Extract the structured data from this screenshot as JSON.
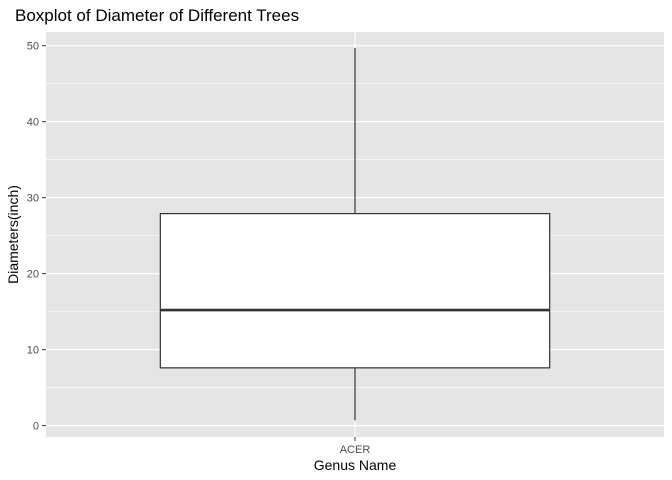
{
  "chart_data": {
    "type": "boxplot",
    "title": "Boxplot of Diameter of Different Trees",
    "xlabel": "Genus Name",
    "ylabel": "Diameters(inch)",
    "categories": [
      "ACER"
    ],
    "boxes": [
      {
        "category": "ACER",
        "whisker_low": 0.7,
        "q1": 7.6,
        "median": 15.2,
        "q3": 27.9,
        "whisker_high": 49.7
      }
    ],
    "ylim": [
      -1.5,
      51.8
    ],
    "yticks": [
      0,
      10,
      20,
      30,
      40,
      50
    ],
    "ytick_labels": [
      "0",
      "10",
      "20",
      "30",
      "40",
      "50"
    ],
    "grid": true,
    "colors": {
      "panel_background": "#e5e5e5",
      "grid": "#ffffff",
      "box_fill": "#ffffff",
      "box_stroke": "#333333",
      "tick_text": "#4d4d4d"
    }
  }
}
